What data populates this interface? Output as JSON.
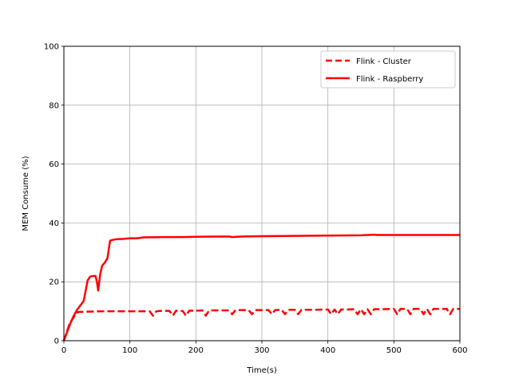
{
  "chart_data": {
    "type": "line",
    "title": "",
    "xlabel": "Time(s)",
    "ylabel": "MEM Consume (%)",
    "xlim": [
      0,
      600
    ],
    "ylim": [
      0,
      100
    ],
    "xticks": [
      0,
      100,
      200,
      300,
      400,
      500,
      600
    ],
    "yticks": [
      0,
      20,
      40,
      60,
      80,
      100
    ],
    "grid": true,
    "legend_position": "top-right",
    "series": [
      {
        "name": "Flink - Cluster",
        "style": "dashed",
        "color": "#ff0000",
        "x": [
          0,
          3,
          6,
          9,
          12,
          15,
          18,
          21,
          25,
          30,
          40,
          60,
          80,
          100,
          130,
          135,
          140,
          150,
          160,
          165,
          170,
          180,
          185,
          190,
          200,
          210,
          215,
          220,
          240,
          250,
          255,
          260,
          270,
          280,
          285,
          290,
          300,
          310,
          315,
          320,
          330,
          335,
          340,
          350,
          355,
          360,
          380,
          400,
          405,
          410,
          415,
          420,
          430,
          440,
          445,
          450,
          455,
          460,
          465,
          470,
          480,
          500,
          505,
          510,
          520,
          525,
          530,
          540,
          545,
          550,
          555,
          560,
          570,
          580,
          585,
          590,
          600
        ],
        "y": [
          0,
          2,
          4,
          6,
          7,
          8,
          9.5,
          9.7,
          9.8,
          9.8,
          9.9,
          10,
          10,
          10,
          10,
          8.5,
          10,
          10.2,
          10.1,
          8.5,
          10.2,
          10.1,
          8.5,
          10.2,
          10.2,
          10.3,
          8.5,
          10.3,
          10.3,
          10.3,
          9,
          10.4,
          10.4,
          10.4,
          9,
          10.4,
          10.4,
          10.4,
          9,
          10.4,
          10.5,
          9,
          10.5,
          10.5,
          9,
          10.5,
          10.5,
          10.6,
          9,
          10.6,
          9,
          10.6,
          10.6,
          10.7,
          9,
          10.7,
          9,
          10.7,
          9,
          10.7,
          10.7,
          10.8,
          9,
          10.8,
          10.8,
          9,
          10.8,
          10.8,
          9,
          10.8,
          9,
          10.8,
          10.8,
          10.8,
          9,
          10.8,
          10.8
        ]
      },
      {
        "name": "Flink - Raspberry",
        "style": "solid",
        "color": "#ff0000",
        "x": [
          0,
          5,
          10,
          15,
          20,
          25,
          30,
          33,
          36,
          40,
          45,
          48,
          50,
          52,
          55,
          58,
          62,
          66,
          70,
          75,
          80,
          90,
          100,
          110,
          115,
          120,
          150,
          180,
          200,
          250,
          255,
          270,
          300,
          350,
          400,
          450,
          470,
          475,
          500,
          550,
          600
        ],
        "y": [
          0,
          3,
          6,
          8.5,
          10.5,
          12,
          13.5,
          17,
          20.5,
          21.8,
          22,
          22,
          20,
          17,
          22.5,
          25.5,
          26.5,
          28,
          34,
          34.3,
          34.5,
          34.6,
          34.8,
          34.8,
          34.9,
          35.1,
          35.2,
          35.2,
          35.3,
          35.4,
          35.2,
          35.4,
          35.5,
          35.6,
          35.7,
          35.8,
          36,
          35.9,
          35.9,
          35.9,
          35.9
        ]
      }
    ]
  }
}
